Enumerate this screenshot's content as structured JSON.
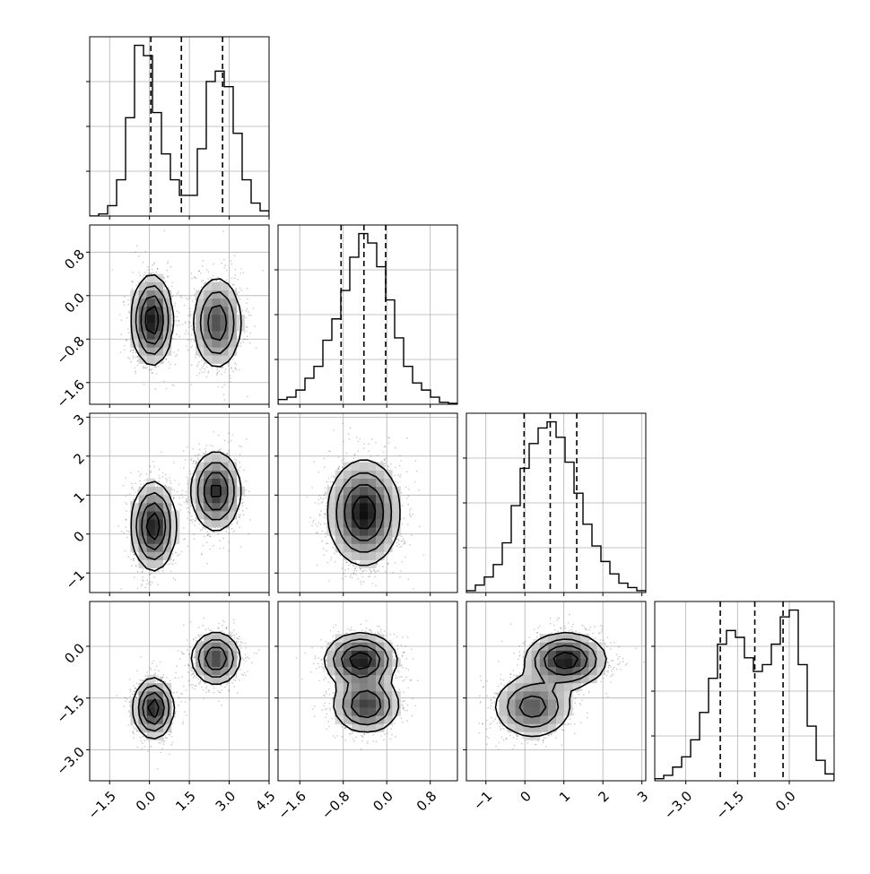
{
  "chart_data": {
    "type": "corner",
    "n_params": 4,
    "grid": true,
    "colors": {
      "line": "#000000",
      "grid": "#b0b0b0",
      "density_max": "#000000",
      "density_min": "#ffffff"
    },
    "params": [
      {
        "range": [
          -2.25,
          4.5
        ],
        "ticks": [
          -1.5,
          0.0,
          1.5,
          3.0,
          4.5
        ],
        "tick_labels": [
          "−1.5",
          "0.0",
          "1.5",
          "3.0",
          "4.5"
        ],
        "quantiles": [
          0.05,
          1.2,
          2.75
        ],
        "hist_edges_start": -2.25,
        "hist_bin_width": 0.3375,
        "hist": [
          0,
          0.4,
          2,
          7,
          19,
          33,
          31,
          20,
          12,
          7,
          4,
          4,
          13,
          26,
          28,
          25,
          16,
          7,
          2.5,
          1,
          0.3
        ]
      },
      {
        "range": [
          -2.0,
          1.3
        ],
        "ticks": [
          -1.6,
          -0.8,
          0.0,
          0.8
        ],
        "tick_labels": [
          "−1.6",
          "−0.8",
          "0.0",
          "0.8"
        ],
        "quantiles": [
          -0.84,
          -0.42,
          -0.02
        ],
        "hist_edges_start": -2.0,
        "hist_bin_width": 0.165,
        "hist": [
          1,
          1.5,
          3,
          5.5,
          8,
          13.5,
          18,
          24,
          31,
          36,
          34,
          29,
          22,
          14,
          8,
          4.5,
          3,
          1.5,
          0.4,
          0.2
        ]
      },
      {
        "range": [
          -1.5,
          3.1
        ],
        "ticks": [
          -1,
          0,
          1,
          2,
          3
        ],
        "tick_labels": [
          "−1",
          "0",
          "1",
          "2",
          "3"
        ],
        "quantiles": [
          -0.02,
          0.65,
          1.33
        ],
        "hist_edges_start": -1.5,
        "hist_bin_width": 0.23,
        "hist": [
          0.3,
          1.2,
          2.5,
          4.5,
          8,
          14,
          20,
          24,
          26.5,
          27.5,
          25,
          21,
          16,
          11,
          7.5,
          5,
          3,
          1.5,
          0.8,
          0.3
        ]
      },
      {
        "range": [
          -3.9,
          1.3
        ],
        "ticks": [
          -3.0,
          -1.5,
          0.0
        ],
        "tick_labels": [
          "−3.0",
          "−1.5",
          "0.0"
        ],
        "quantiles": [
          -2.0,
          -1.0,
          -0.18
        ],
        "hist_edges_start": -3.9,
        "hist_bin_width": 0.26,
        "hist": [
          0.3,
          0.8,
          2,
          3.5,
          6,
          10,
          15,
          20,
          22,
          21,
          18,
          16,
          17,
          20,
          24,
          25,
          17,
          8,
          3,
          1
        ]
      }
    ],
    "blobs": [
      {
        "row": 1,
        "col": 0,
        "components": [
          {
            "cx": 0.1,
            "cy": -0.45,
            "sx": 0.37,
            "sy": 0.4,
            "w": 0.52
          },
          {
            "cx": 2.55,
            "cy": -0.5,
            "sx": 0.45,
            "sy": 0.42,
            "w": 0.48
          }
        ]
      },
      {
        "row": 2,
        "col": 0,
        "components": [
          {
            "cx": 0.15,
            "cy": 0.2,
            "sx": 0.4,
            "sy": 0.55,
            "w": 0.52
          },
          {
            "cx": 2.5,
            "cy": 1.1,
            "sx": 0.45,
            "sy": 0.5,
            "w": 0.48
          }
        ]
      },
      {
        "row": 2,
        "col": 1,
        "components": [
          {
            "cx": -0.42,
            "cy": 0.55,
            "sx": 0.32,
            "sy": 0.65,
            "w": 1.0
          }
        ]
      },
      {
        "row": 3,
        "col": 0,
        "components": [
          {
            "cx": 0.15,
            "cy": -1.8,
            "sx": 0.36,
            "sy": 0.42,
            "w": 0.52
          },
          {
            "cx": 2.5,
            "cy": -0.35,
            "sx": 0.45,
            "sy": 0.38,
            "w": 0.48
          }
        ]
      },
      {
        "row": 3,
        "col": 1,
        "components": [
          {
            "cx": -0.48,
            "cy": -0.4,
            "sx": 0.32,
            "sy": 0.38,
            "w": 0.55
          },
          {
            "cx": -0.38,
            "cy": -1.7,
            "sx": 0.3,
            "sy": 0.4,
            "w": 0.45
          }
        ]
      },
      {
        "row": 3,
        "col": 2,
        "components": [
          {
            "cx": 0.2,
            "cy": -1.75,
            "sx": 0.5,
            "sy": 0.45,
            "w": 0.45
          },
          {
            "cx": 1.05,
            "cy": -0.4,
            "sx": 0.5,
            "sy": 0.38,
            "w": 0.55
          }
        ]
      }
    ]
  }
}
